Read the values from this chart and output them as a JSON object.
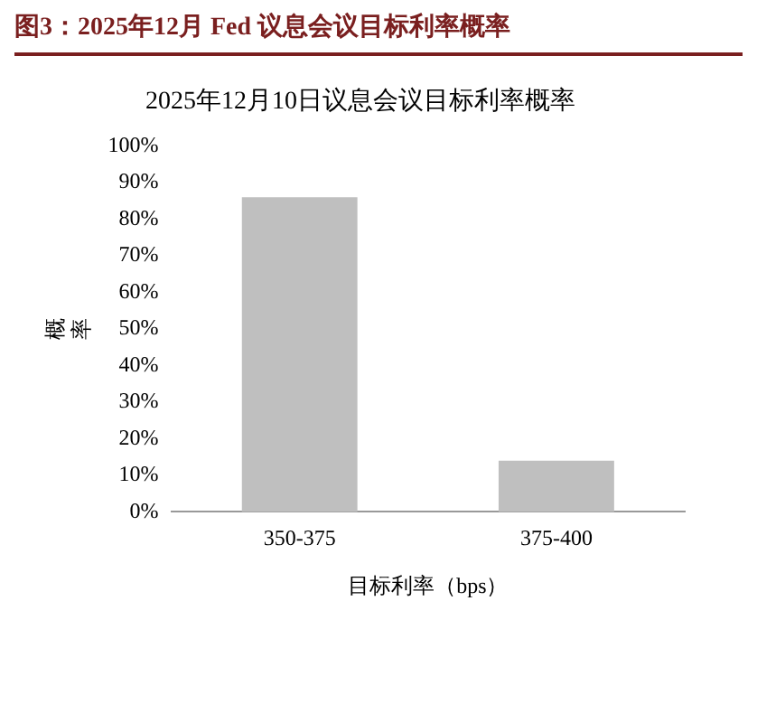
{
  "chart_data": {
    "type": "bar",
    "title": "图3：2025年12月 Fed 议息会议目标利率概率",
    "subtitle": "2025年12月10日议息会议目标利率概率",
    "xlabel": "目标利率（bps）",
    "ylabel": "概率",
    "categories": [
      "350-375",
      "375-400"
    ],
    "values": [
      86,
      14
    ],
    "color": "#bfbfbf",
    "ylim": [
      0,
      100
    ],
    "yticks": [
      {
        "value": 0,
        "label": "0%"
      },
      {
        "value": 10,
        "label": "10%"
      },
      {
        "value": 20,
        "label": "20%"
      },
      {
        "value": 30,
        "label": "30%"
      },
      {
        "value": 40,
        "label": "40%"
      },
      {
        "value": 50,
        "label": "50%"
      },
      {
        "value": 60,
        "label": "60%"
      },
      {
        "value": 70,
        "label": "70%"
      },
      {
        "value": 80,
        "label": "80%"
      },
      {
        "value": 90,
        "label": "90%"
      },
      {
        "value": 100,
        "label": "100%"
      }
    ],
    "grid": false,
    "legend": false
  }
}
